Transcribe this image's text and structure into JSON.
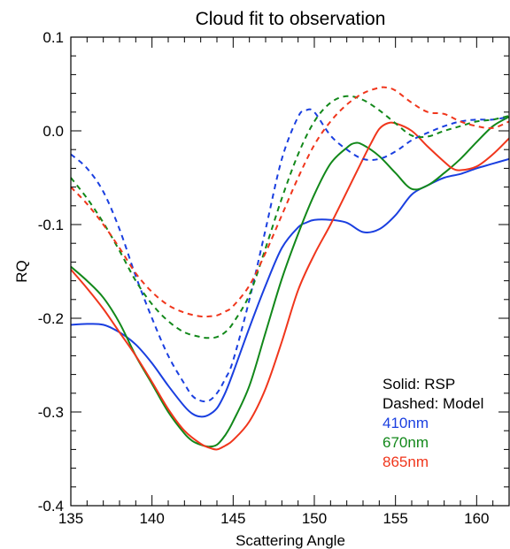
{
  "chart_data": {
    "type": "line",
    "title": "Cloud fit to observation",
    "xlabel": "Scattering Angle",
    "ylabel": "RQ",
    "xlim": [
      135,
      162
    ],
    "ylim": [
      -0.4,
      0.1
    ],
    "xticks": [
      135,
      140,
      145,
      150,
      155,
      160
    ],
    "xtick_labels": [
      "135",
      "140",
      "145",
      "150",
      "155",
      "160"
    ],
    "yticks": [
      -0.4,
      -0.3,
      -0.2,
      -0.1,
      0.0,
      0.1
    ],
    "ytick_labels": [
      "-0.4",
      "-0.3",
      "-0.2",
      "-0.1",
      "0.0",
      "0.1"
    ],
    "grid": false,
    "legend": {
      "placement": "bottom-right",
      "lines": [
        {
          "text": "Solid: RSP",
          "color": "#000000"
        },
        {
          "text": "Dashed: Model",
          "color": "#000000"
        },
        {
          "text": "410nm",
          "color": "#1a3fe0"
        },
        {
          "text": "670nm",
          "color": "#12881a"
        },
        {
          "text": "865nm",
          "color": "#f0361c"
        }
      ]
    },
    "series": [
      {
        "wavelength": "410nm",
        "kind": "RSP",
        "color": "#1a3fe0",
        "dashed": false,
        "x": [
          135,
          136,
          137,
          138,
          139,
          140,
          141,
          142,
          142.5,
          143,
          143.5,
          144,
          144.5,
          145,
          146,
          147,
          148,
          149,
          149.5,
          150,
          151,
          152,
          153,
          154,
          155,
          156,
          157,
          158,
          159,
          160,
          161,
          162
        ],
        "y": [
          -0.207,
          -0.206,
          -0.207,
          -0.215,
          -0.228,
          -0.248,
          -0.272,
          -0.294,
          -0.302,
          -0.305,
          -0.303,
          -0.296,
          -0.28,
          -0.258,
          -0.21,
          -0.165,
          -0.125,
          -0.103,
          -0.098,
          -0.095,
          -0.095,
          -0.098,
          -0.108,
          -0.105,
          -0.09,
          -0.068,
          -0.058,
          -0.05,
          -0.046,
          -0.04,
          -0.035,
          -0.03
        ]
      },
      {
        "wavelength": "670nm",
        "kind": "RSP",
        "color": "#12881a",
        "dashed": false,
        "x": [
          135,
          136,
          137,
          138,
          139,
          140,
          141,
          142,
          142.5,
          143,
          143.5,
          144,
          144.5,
          145,
          146,
          147,
          148,
          149,
          150,
          151,
          152,
          152.5,
          153,
          154,
          155,
          156,
          157,
          158,
          159,
          160,
          161,
          162
        ],
        "y": [
          -0.145,
          -0.16,
          -0.178,
          -0.205,
          -0.24,
          -0.27,
          -0.3,
          -0.323,
          -0.331,
          -0.335,
          -0.337,
          -0.335,
          -0.325,
          -0.31,
          -0.272,
          -0.215,
          -0.158,
          -0.11,
          -0.068,
          -0.035,
          -0.018,
          -0.013,
          -0.015,
          -0.027,
          -0.045,
          -0.062,
          -0.058,
          -0.045,
          -0.03,
          -0.012,
          0.005,
          0.015
        ]
      },
      {
        "wavelength": "865nm",
        "kind": "RSP",
        "color": "#f0361c",
        "dashed": false,
        "x": [
          135,
          136,
          137,
          138,
          139,
          140,
          141,
          142,
          143,
          143.5,
          144,
          144.5,
          145,
          146,
          147,
          148,
          149,
          150,
          151,
          152,
          153,
          153.5,
          154,
          154.5,
          155,
          156,
          157,
          158,
          158.5,
          159,
          160,
          161,
          162
        ],
        "y": [
          -0.148,
          -0.168,
          -0.19,
          -0.215,
          -0.24,
          -0.268,
          -0.297,
          -0.32,
          -0.334,
          -0.338,
          -0.34,
          -0.336,
          -0.33,
          -0.31,
          -0.275,
          -0.225,
          -0.17,
          -0.132,
          -0.1,
          -0.065,
          -0.03,
          -0.013,
          0.002,
          0.008,
          0.008,
          0.0,
          -0.017,
          -0.033,
          -0.04,
          -0.042,
          -0.038,
          -0.025,
          -0.008
        ]
      },
      {
        "wavelength": "410nm",
        "kind": "Model",
        "color": "#1a3fe0",
        "dashed": true,
        "x": [
          135,
          136,
          137,
          138,
          139,
          140,
          141,
          142,
          142.5,
          143,
          143.5,
          144,
          144.5,
          145,
          146,
          147,
          148,
          149,
          149.5,
          150,
          151,
          152,
          153,
          154,
          155,
          156,
          157,
          158,
          159,
          160,
          161,
          162
        ],
        "y": [
          -0.025,
          -0.04,
          -0.065,
          -0.105,
          -0.155,
          -0.2,
          -0.24,
          -0.27,
          -0.283,
          -0.288,
          -0.288,
          -0.28,
          -0.265,
          -0.245,
          -0.18,
          -0.105,
          -0.03,
          0.015,
          0.022,
          0.02,
          -0.005,
          -0.02,
          -0.03,
          -0.03,
          -0.022,
          -0.01,
          -0.002,
          0.005,
          0.01,
          0.012,
          0.012,
          0.015
        ]
      },
      {
        "wavelength": "670nm",
        "kind": "Model",
        "color": "#12881a",
        "dashed": true,
        "x": [
          135,
          136,
          137,
          138,
          139,
          140,
          141,
          142,
          143,
          143.5,
          144,
          144.5,
          145,
          146,
          147,
          148,
          149,
          150,
          151,
          152,
          153,
          154,
          155,
          156,
          157,
          158,
          159,
          160,
          161,
          162
        ],
        "y": [
          -0.05,
          -0.072,
          -0.098,
          -0.128,
          -0.16,
          -0.185,
          -0.203,
          -0.215,
          -0.22,
          -0.221,
          -0.22,
          -0.215,
          -0.205,
          -0.175,
          -0.125,
          -0.072,
          -0.025,
          0.01,
          0.03,
          0.037,
          0.033,
          0.022,
          0.008,
          -0.005,
          -0.006,
          0.0,
          0.005,
          0.01,
          0.012,
          0.016
        ]
      },
      {
        "wavelength": "865nm",
        "kind": "Model",
        "color": "#f0361c",
        "dashed": true,
        "x": [
          135,
          136,
          137,
          138,
          139,
          140,
          141,
          142,
          143,
          143.5,
          144,
          144.5,
          145,
          146,
          147,
          148,
          149,
          150,
          151,
          152,
          153,
          154,
          154.5,
          155,
          156,
          157,
          158,
          159,
          160,
          161,
          162
        ],
        "y": [
          -0.06,
          -0.078,
          -0.1,
          -0.125,
          -0.152,
          -0.172,
          -0.186,
          -0.194,
          -0.198,
          -0.198,
          -0.197,
          -0.193,
          -0.187,
          -0.165,
          -0.13,
          -0.09,
          -0.05,
          -0.015,
          0.01,
          0.028,
          0.04,
          0.046,
          0.046,
          0.043,
          0.03,
          0.02,
          0.018,
          0.01,
          0.005,
          0.003,
          0.01
        ]
      }
    ]
  }
}
